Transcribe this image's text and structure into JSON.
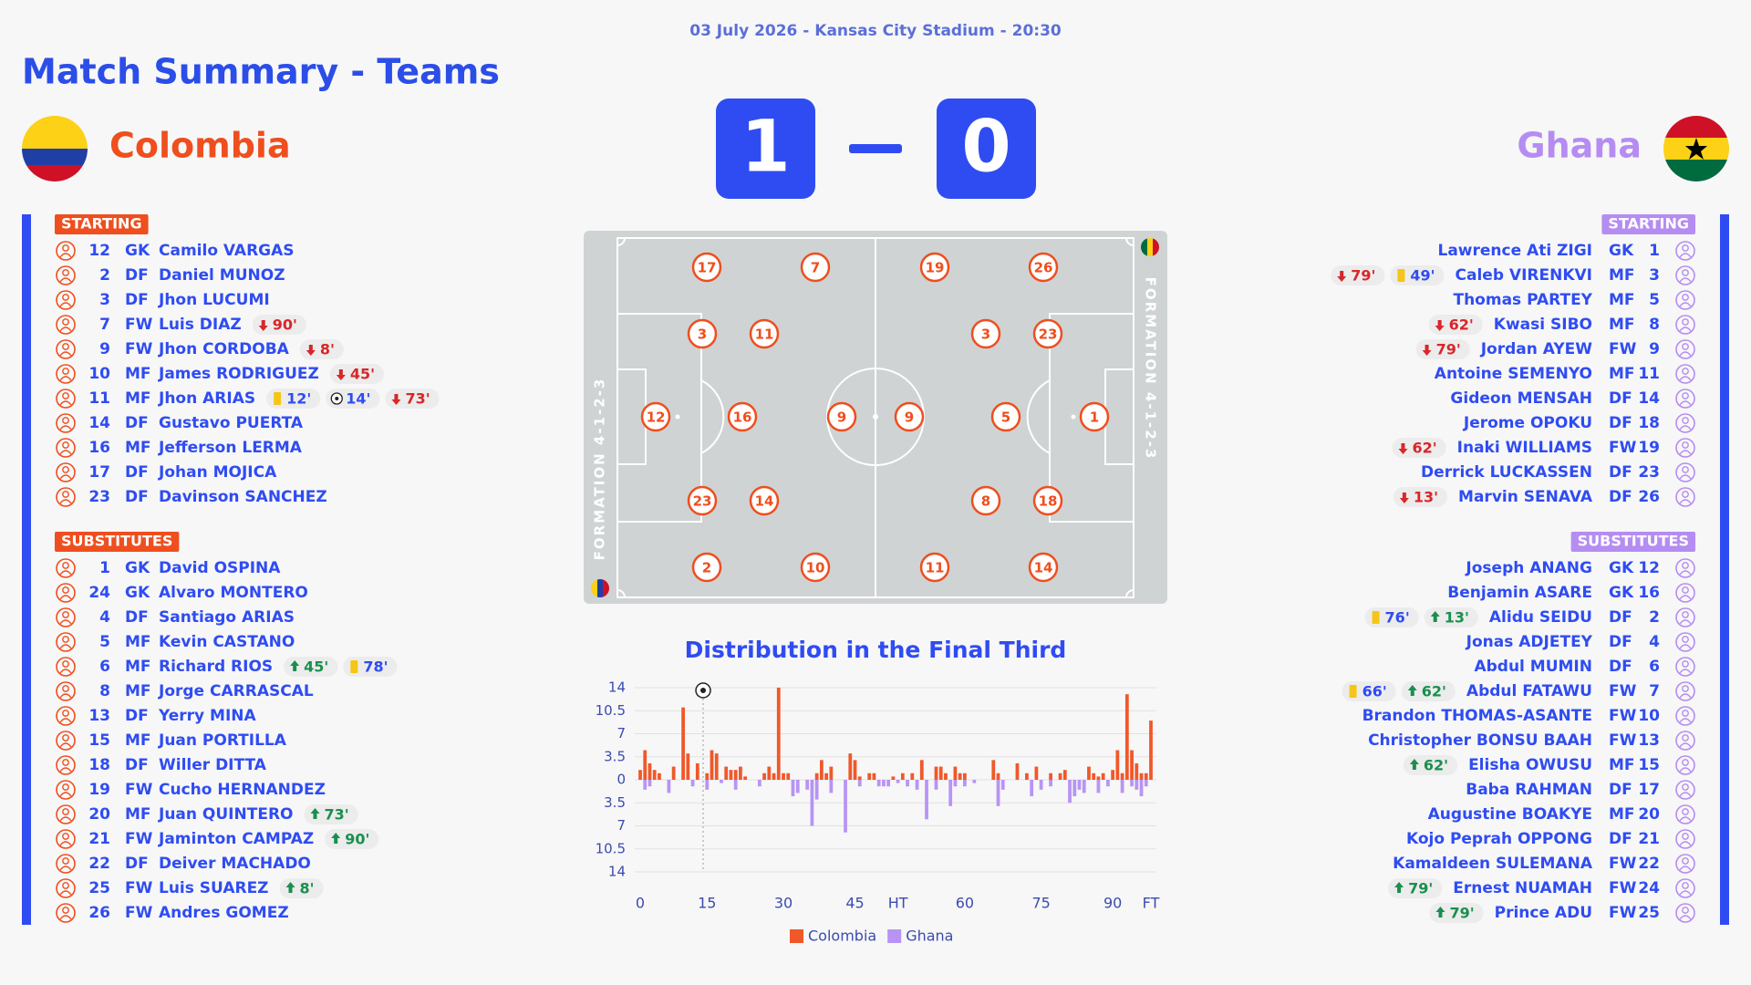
{
  "header": {
    "date_venue": "03 July 2026 - Kansas City Stadium - 20:30",
    "title": "Match Summary - Teams"
  },
  "teams": {
    "home": {
      "name": "Colombia",
      "score": 1,
      "formation": "FORMATION 4-1-2-3",
      "starting_label": "STARTING",
      "starting": [
        {
          "number": 12,
          "position": "GK",
          "name": "Camilo VARGAS",
          "events": []
        },
        {
          "number": 2,
          "position": "DF",
          "name": "Daniel MUNOZ",
          "events": []
        },
        {
          "number": 3,
          "position": "DF",
          "name": "Jhon LUCUMI",
          "events": []
        },
        {
          "number": 7,
          "position": "FW",
          "name": "Luis DIAZ",
          "events": [
            {
              "type": "sub_out",
              "minute": "90'"
            }
          ]
        },
        {
          "number": 9,
          "position": "FW",
          "name": "Jhon CORDOBA",
          "events": [
            {
              "type": "sub_out",
              "minute": "8'"
            }
          ]
        },
        {
          "number": 10,
          "position": "MF",
          "name": "James RODRIGUEZ",
          "events": [
            {
              "type": "sub_out",
              "minute": "45'"
            }
          ]
        },
        {
          "number": 11,
          "position": "MF",
          "name": "Jhon ARIAS",
          "events": [
            {
              "type": "yellow",
              "minute": "12'"
            },
            {
              "type": "goal",
              "minute": "14'"
            },
            {
              "type": "sub_out",
              "minute": "73'"
            }
          ]
        },
        {
          "number": 14,
          "position": "DF",
          "name": "Gustavo PUERTA",
          "events": []
        },
        {
          "number": 16,
          "position": "MF",
          "name": "Jefferson LERMA",
          "events": []
        },
        {
          "number": 17,
          "position": "DF",
          "name": "Johan MOJICA",
          "events": []
        },
        {
          "number": 23,
          "position": "DF",
          "name": "Davinson SANCHEZ",
          "events": []
        }
      ],
      "substitutes_label": "SUBSTITUTES",
      "substitutes": [
        {
          "number": 1,
          "position": "GK",
          "name": "David OSPINA",
          "events": []
        },
        {
          "number": 24,
          "position": "GK",
          "name": "Alvaro MONTERO",
          "events": []
        },
        {
          "number": 4,
          "position": "DF",
          "name": "Santiago ARIAS",
          "events": []
        },
        {
          "number": 5,
          "position": "MF",
          "name": "Kevin CASTANO",
          "events": []
        },
        {
          "number": 6,
          "position": "MF",
          "name": "Richard RIOS",
          "events": [
            {
              "type": "sub_in",
              "minute": "45'"
            },
            {
              "type": "yellow",
              "minute": "78'"
            }
          ]
        },
        {
          "number": 8,
          "position": "MF",
          "name": "Jorge CARRASCAL",
          "events": []
        },
        {
          "number": 13,
          "position": "DF",
          "name": "Yerry MINA",
          "events": []
        },
        {
          "number": 15,
          "position": "MF",
          "name": "Juan PORTILLA",
          "events": []
        },
        {
          "number": 18,
          "position": "DF",
          "name": "Willer DITTA",
          "events": []
        },
        {
          "number": 19,
          "position": "FW",
          "name": "Cucho HERNANDEZ",
          "events": []
        },
        {
          "number": 20,
          "position": "MF",
          "name": "Juan QUINTERO",
          "events": [
            {
              "type": "sub_in",
              "minute": "73'"
            }
          ]
        },
        {
          "number": 21,
          "position": "FW",
          "name": "Jaminton CAMPAZ",
          "events": [
            {
              "type": "sub_in",
              "minute": "90'"
            }
          ]
        },
        {
          "number": 22,
          "position": "DF",
          "name": "Deiver MACHADO",
          "events": []
        },
        {
          "number": 25,
          "position": "FW",
          "name": "Luis SUAREZ",
          "events": [
            {
              "type": "sub_in",
              "minute": "8'"
            }
          ]
        },
        {
          "number": 26,
          "position": "FW",
          "name": "Andres GOMEZ",
          "events": []
        }
      ],
      "pitch": [
        12,
        3,
        16,
        23,
        11,
        14,
        9,
        17,
        7,
        2,
        10
      ]
    },
    "away": {
      "name": "Ghana",
      "score": 0,
      "formation": "FORMATION 4-1-2-3",
      "starting_label": "STARTING",
      "starting": [
        {
          "number": 1,
          "position": "GK",
          "name": "Lawrence Ati ZIGI",
          "events": []
        },
        {
          "number": 3,
          "position": "MF",
          "name": "Caleb VIRENKVI",
          "events": [
            {
              "type": "sub_out",
              "minute": "79'"
            },
            {
              "type": "yellow",
              "minute": "49'"
            }
          ]
        },
        {
          "number": 5,
          "position": "MF",
          "name": "Thomas PARTEY",
          "events": []
        },
        {
          "number": 8,
          "position": "MF",
          "name": "Kwasi SIBO",
          "events": [
            {
              "type": "sub_out",
              "minute": "62'"
            }
          ]
        },
        {
          "number": 9,
          "position": "FW",
          "name": "Jordan AYEW",
          "events": [
            {
              "type": "sub_out",
              "minute": "79'"
            }
          ]
        },
        {
          "number": 11,
          "position": "MF",
          "name": "Antoine SEMENYO",
          "events": []
        },
        {
          "number": 14,
          "position": "DF",
          "name": "Gideon MENSAH",
          "events": []
        },
        {
          "number": 18,
          "position": "DF",
          "name": "Jerome OPOKU",
          "events": []
        },
        {
          "number": 19,
          "position": "FW",
          "name": "Inaki WILLIAMS",
          "events": [
            {
              "type": "sub_out",
              "minute": "62'"
            }
          ]
        },
        {
          "number": 23,
          "position": "DF",
          "name": "Derrick LUCKASSEN",
          "events": []
        },
        {
          "number": 26,
          "position": "DF",
          "name": "Marvin SENAVA",
          "events": [
            {
              "type": "sub_out",
              "minute": "13'"
            }
          ]
        }
      ],
      "substitutes_label": "SUBSTITUTES",
      "substitutes": [
        {
          "number": 12,
          "position": "GK",
          "name": "Joseph ANANG",
          "events": []
        },
        {
          "number": 16,
          "position": "GK",
          "name": "Benjamin ASARE",
          "events": []
        },
        {
          "number": 2,
          "position": "DF",
          "name": "Alidu SEIDU",
          "events": [
            {
              "type": "yellow",
              "minute": "76'"
            },
            {
              "type": "sub_in",
              "minute": "13'"
            }
          ]
        },
        {
          "number": 4,
          "position": "DF",
          "name": "Jonas ADJETEY",
          "events": []
        },
        {
          "number": 6,
          "position": "DF",
          "name": "Abdul MUMIN",
          "events": []
        },
        {
          "number": 7,
          "position": "FW",
          "name": "Abdul FATAWU",
          "events": [
            {
              "type": "yellow",
              "minute": "66'"
            },
            {
              "type": "sub_in",
              "minute": "62'"
            }
          ]
        },
        {
          "number": 10,
          "position": "FW",
          "name": "Brandon THOMAS-ASANTE",
          "events": []
        },
        {
          "number": 13,
          "position": "FW",
          "name": "Christopher BONSU BAAH",
          "events": []
        },
        {
          "number": 15,
          "position": "MF",
          "name": "Elisha OWUSU",
          "events": [
            {
              "type": "sub_in",
              "minute": "62'"
            }
          ]
        },
        {
          "number": 17,
          "position": "DF",
          "name": "Baba RAHMAN",
          "events": []
        },
        {
          "number": 20,
          "position": "MF",
          "name": "Augustine BOAKYE",
          "events": []
        },
        {
          "number": 21,
          "position": "DF",
          "name": "Kojo Peprah OPPONG",
          "events": []
        },
        {
          "number": 22,
          "position": "FW",
          "name": "Kamaldeen SULEMANA",
          "events": []
        },
        {
          "number": 24,
          "position": "FW",
          "name": "Ernest NUAMAH",
          "events": [
            {
              "type": "sub_in",
              "minute": "79'"
            }
          ]
        },
        {
          "number": 25,
          "position": "FW",
          "name": "Prince ADU",
          "events": [
            {
              "type": "sub_in",
              "minute": "79'"
            }
          ]
        }
      ],
      "pitch": [
        1,
        3,
        5,
        8,
        23,
        18,
        9,
        19,
        26,
        11,
        14
      ]
    }
  },
  "chart_data": {
    "type": "bar",
    "title": "Distribution in the Final Third",
    "categories": [
      "0",
      null,
      null,
      null,
      null,
      null,
      null,
      null,
      null,
      null,
      null,
      null,
      null,
      null,
      "15",
      null,
      null,
      null,
      null,
      null,
      null,
      null,
      null,
      null,
      null,
      null,
      null,
      null,
      null,
      null,
      "30",
      null,
      null,
      null,
      null,
      null,
      null,
      null,
      null,
      null,
      null,
      null,
      null,
      null,
      null,
      "45",
      null,
      null,
      null,
      null,
      null,
      null,
      null,
      null,
      "HT",
      null,
      null,
      null,
      null,
      null,
      null,
      null,
      null,
      null,
      null,
      null,
      null,
      null,
      "60",
      null,
      null,
      null,
      null,
      null,
      null,
      null,
      null,
      null,
      null,
      null,
      null,
      null,
      null,
      null,
      "75",
      null,
      null,
      null,
      null,
      null,
      null,
      null,
      null,
      null,
      null,
      null,
      null,
      null,
      null,
      "90",
      null,
      null,
      null,
      null,
      null,
      null,
      null,
      "FT"
    ],
    "series": [
      {
        "name": "Colombia",
        "color": "#f0582a",
        "values": [
          1.5,
          4.5,
          2.5,
          1.5,
          1,
          0,
          0,
          2,
          0,
          11,
          4,
          0,
          2.5,
          0,
          1,
          4.5,
          4,
          0,
          2,
          1.5,
          1.5,
          2,
          0.5,
          0,
          0,
          0,
          1,
          2,
          1,
          14,
          1,
          1,
          0,
          0,
          0,
          0,
          0,
          1,
          3,
          1,
          2,
          0,
          0,
          0,
          4,
          3,
          0.5,
          0,
          1,
          1,
          0,
          0,
          0,
          0.5,
          0,
          1,
          0,
          1,
          0,
          3,
          0,
          0,
          2,
          2,
          1,
          0,
          2,
          1,
          1,
          0,
          0,
          0,
          0,
          0,
          3,
          1,
          0,
          0,
          0,
          2.5,
          0,
          1,
          0,
          2,
          0,
          0,
          1,
          0,
          1,
          1.5,
          0,
          0,
          0,
          0,
          2,
          1,
          0.5,
          1,
          0,
          1.5,
          4.5,
          1,
          13,
          4.5,
          2.5,
          1,
          1,
          9
        ]
      },
      {
        "name": "Ghana",
        "color": "#b794f4",
        "values": [
          0,
          -1.5,
          -1,
          0,
          0,
          0,
          -2,
          0,
          0,
          0,
          0,
          -1,
          0,
          0,
          -1.5,
          0,
          0,
          -0.5,
          0,
          0,
          -1.5,
          0,
          0,
          0,
          0,
          -1,
          0,
          0,
          0,
          0,
          0,
          0,
          -2.5,
          -2,
          0,
          -1.5,
          -7,
          -3,
          0,
          0,
          -2,
          0,
          0,
          -8,
          0,
          0,
          -1,
          0,
          0,
          0,
          -1,
          -1,
          -1,
          0,
          -0.5,
          0,
          -1,
          0,
          -1.5,
          0,
          -6,
          0,
          -1.5,
          0,
          0,
          -4,
          -1,
          0,
          -1,
          0,
          -0.5,
          0,
          0,
          0,
          0,
          -4,
          -1.5,
          0,
          0,
          0,
          0,
          0,
          -2.5,
          0,
          -1.5,
          0,
          -1,
          0,
          0,
          0,
          -3.5,
          -2.5,
          -1.5,
          -2,
          0,
          0,
          -2,
          0,
          -1,
          0,
          0,
          -2,
          0,
          -1,
          -1.5,
          -2.5,
          -1,
          0
        ]
      }
    ],
    "ylim": [
      -14,
      14
    ],
    "yticks": [
      {
        "value": -14,
        "label": "14"
      },
      {
        "value": -10.5,
        "label": "10.5"
      },
      {
        "value": -7,
        "label": "7"
      },
      {
        "value": -3.5,
        "label": "3.5"
      },
      0,
      3.5,
      7,
      10.5,
      14
    ],
    "grid": true,
    "legend": "bottom"
  }
}
